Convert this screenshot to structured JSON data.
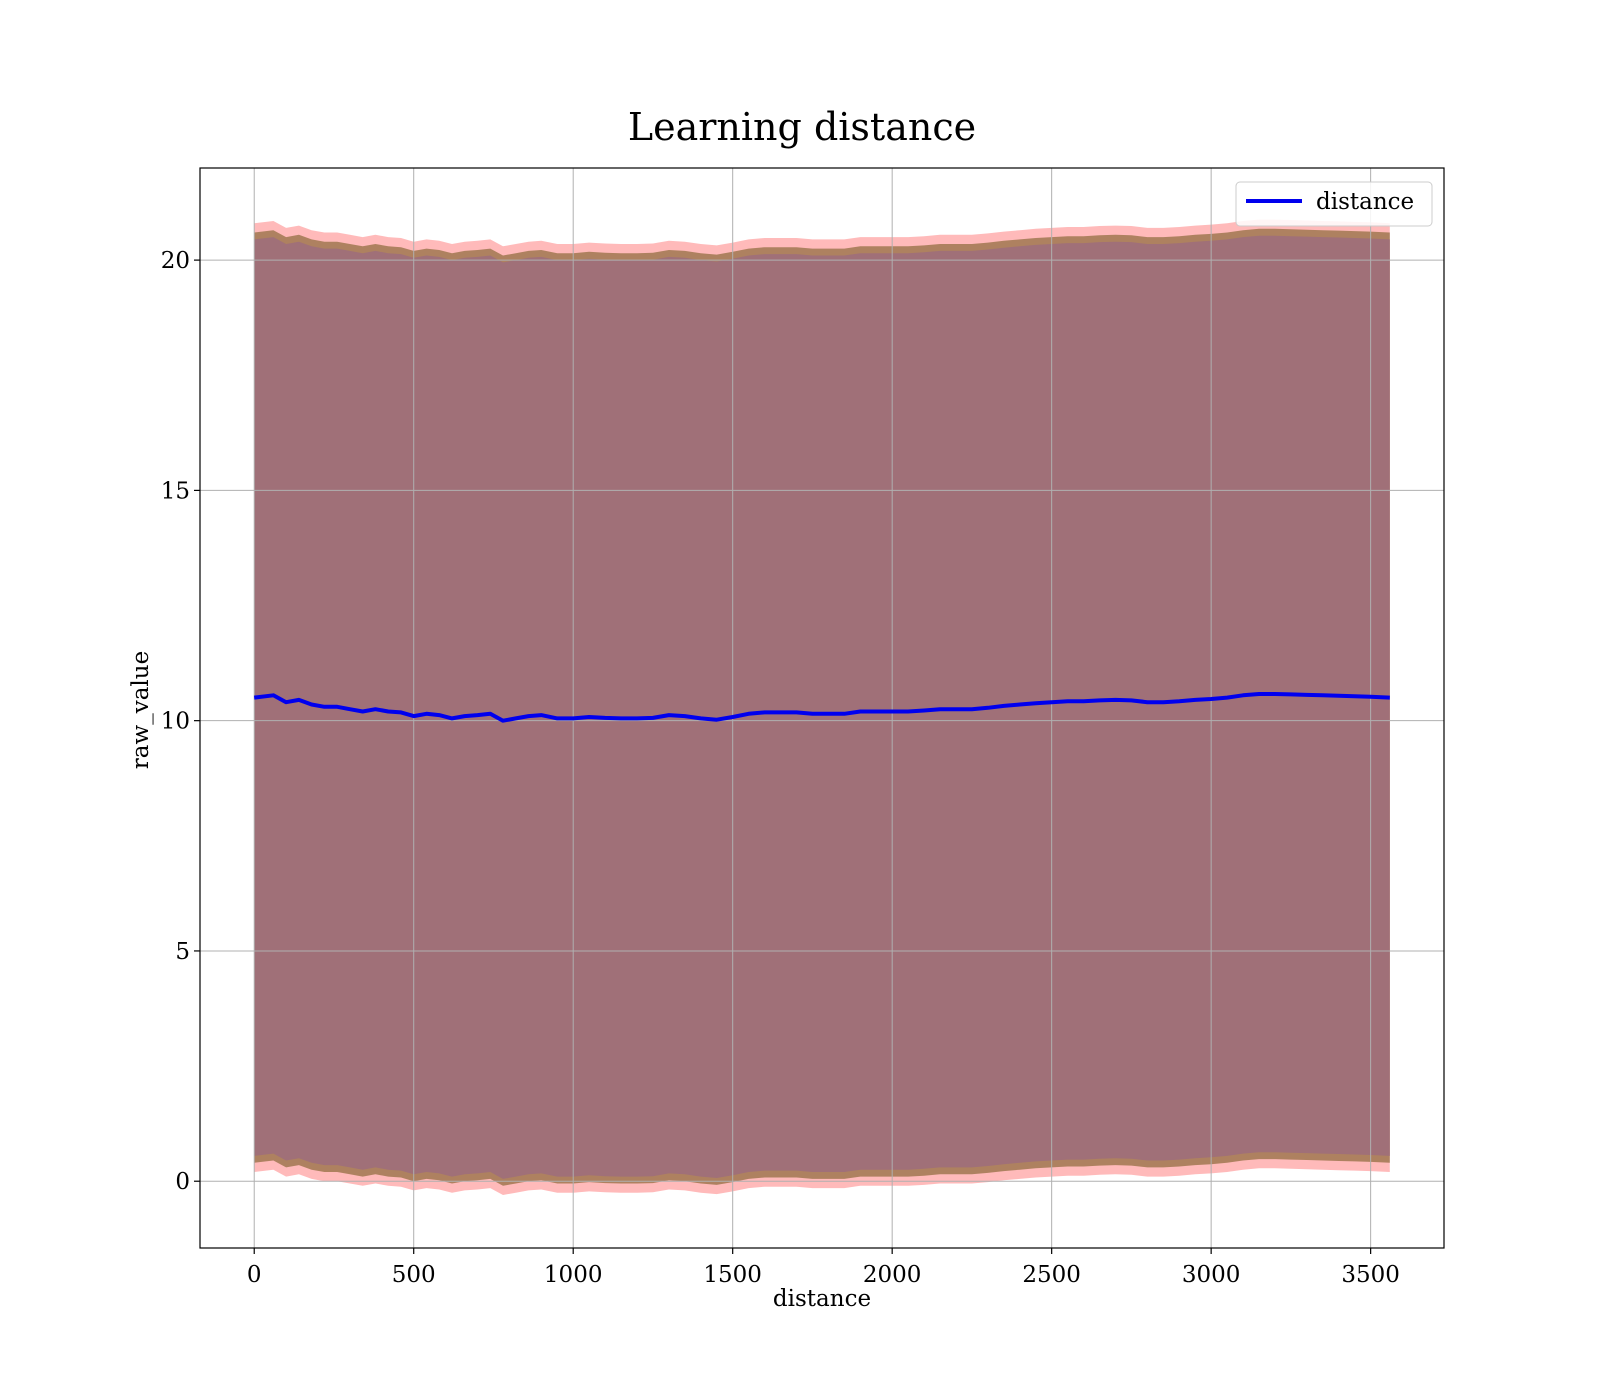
{
  "chart_data": {
    "type": "line",
    "title": "Learning distance",
    "xlabel": "distance",
    "ylabel": "raw_value",
    "xlim": [
      -170,
      3730
    ],
    "ylim": [
      -1.45,
      22
    ],
    "xticks": [
      0,
      500,
      1000,
      1500,
      2000,
      2500,
      3000,
      3500
    ],
    "yticks": [
      0,
      5,
      10,
      15,
      20
    ],
    "grid": true,
    "legend": {
      "position": "top-right",
      "entries": [
        "distance"
      ]
    },
    "series": [
      {
        "name": "distance",
        "color": "#0000ee",
        "x": [
          0,
          60,
          100,
          140,
          180,
          220,
          260,
          300,
          340,
          380,
          420,
          460,
          500,
          540,
          580,
          620,
          660,
          700,
          740,
          780,
          820,
          860,
          900,
          950,
          1000,
          1050,
          1100,
          1150,
          1200,
          1250,
          1300,
          1350,
          1400,
          1450,
          1500,
          1550,
          1600,
          1650,
          1700,
          1750,
          1800,
          1850,
          1900,
          1950,
          2000,
          2050,
          2100,
          2150,
          2200,
          2250,
          2300,
          2350,
          2400,
          2450,
          2500,
          2550,
          2600,
          2650,
          2700,
          2750,
          2800,
          2850,
          2900,
          2950,
          3000,
          3050,
          3100,
          3150,
          3200,
          3250,
          3300,
          3350,
          3400,
          3450,
          3500,
          3560
        ],
        "y": [
          10.5,
          10.55,
          10.4,
          10.45,
          10.35,
          10.3,
          10.3,
          10.25,
          10.2,
          10.25,
          10.2,
          10.18,
          10.1,
          10.15,
          10.12,
          10.05,
          10.1,
          10.12,
          10.15,
          10.0,
          10.05,
          10.1,
          10.12,
          10.05,
          10.05,
          10.08,
          10.06,
          10.05,
          10.05,
          10.06,
          10.12,
          10.1,
          10.05,
          10.02,
          10.08,
          10.15,
          10.18,
          10.18,
          10.18,
          10.15,
          10.15,
          10.15,
          10.2,
          10.2,
          10.2,
          10.2,
          10.22,
          10.25,
          10.25,
          10.25,
          10.28,
          10.32,
          10.35,
          10.38,
          10.4,
          10.42,
          10.42,
          10.44,
          10.45,
          10.44,
          10.4,
          10.4,
          10.42,
          10.45,
          10.47,
          10.5,
          10.55,
          10.58,
          10.58,
          10.57,
          10.56,
          10.55,
          10.54,
          10.53,
          10.52,
          10.5
        ]
      }
    ],
    "bands": [
      {
        "color": "#ff6666",
        "opacity": 0.45,
        "half_width_inner": 10.15,
        "half_width_outer": 10.3
      },
      {
        "color": "#8b6a3a",
        "opacity": 0.7,
        "half_width_inner": 9.95,
        "half_width_outer": 10.1
      },
      {
        "color": "#a07078",
        "opacity": 1.0,
        "half_width_outer": 9.95
      }
    ]
  }
}
